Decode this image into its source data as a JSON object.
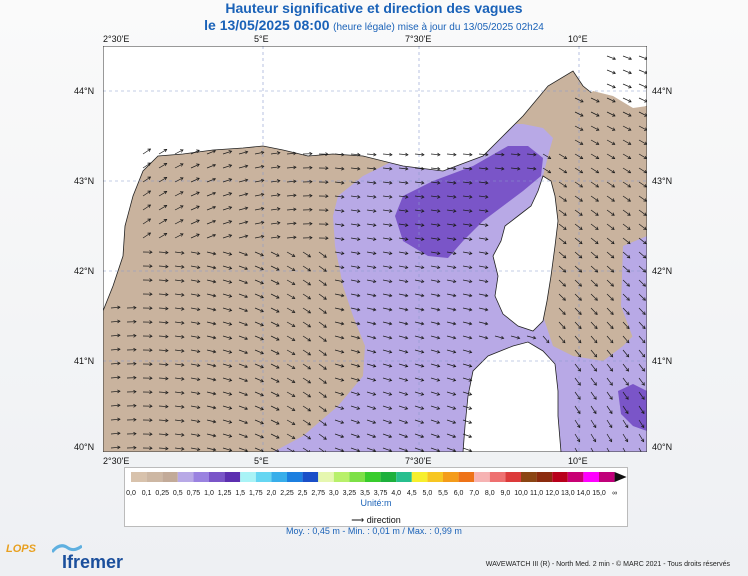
{
  "title": "Hauteur significative et direction des vagues",
  "subtitle_date": "le 13/05/2025 08:00",
  "subtitle_note": "(heure légale) mise à jour du 13/05/2025 02h24",
  "lon_labels": [
    "2°30'E",
    "5°E",
    "7°30'E",
    "10°E"
  ],
  "lat_labels": [
    "44°N",
    "43°N",
    "42°N",
    "41°N",
    "40°N"
  ],
  "legend": {
    "values": [
      "0,0",
      "0,1",
      "0,25",
      "0,5",
      "0,75",
      "1,0",
      "1,25",
      "1,5",
      "1,75",
      "2,0",
      "2,25",
      "2,5",
      "2,75",
      "3,0",
      "3,25",
      "3,5",
      "3,75",
      "4,0",
      "4,5",
      "5,0",
      "5,5",
      "6,0",
      "7,0",
      "8,0",
      "9,0",
      "10,0",
      "11,0",
      "12,0",
      "13,0",
      "14,0",
      "15,0",
      "∞"
    ],
    "colors": [
      "#d8c2ac",
      "#cdb7a3",
      "#c2aa98",
      "#b8a9e6",
      "#9a82e0",
      "#7a55c8",
      "#5c2fb0",
      "#a9f3f6",
      "#66d6f2",
      "#38aeea",
      "#1c7fe0",
      "#1a4fc8",
      "#e6f7b0",
      "#b8f06a",
      "#7de046",
      "#38cc2c",
      "#1db03d",
      "#27bf8e",
      "#f7ef2d",
      "#f7c622",
      "#f49c1a",
      "#ee7318",
      "#f6b3b3",
      "#ee7070",
      "#dc3a3a",
      "#8b4513",
      "#8b2b0e",
      "#b8001a",
      "#c80074",
      "#ff00ff",
      "#c0007a"
    ],
    "unit": "Unité:m",
    "direction": "direction"
  },
  "stats": "Moy. : 0,45 m  -  Min. : 0,01 m / Max. : 0,99 m",
  "credit": "WAVEWATCH III (R) - North Med. 2 min - © MARC 2021 - Tous droits réservés",
  "logos": {
    "lops": "LOPS",
    "ifremer": "Ifremer"
  },
  "map_colors": {
    "land": "#ffffff",
    "sea_low": "#c9b39e",
    "sea_mid": "#b8a9e6",
    "sea_high": "#7a55c8",
    "grid": "#8899cc"
  }
}
